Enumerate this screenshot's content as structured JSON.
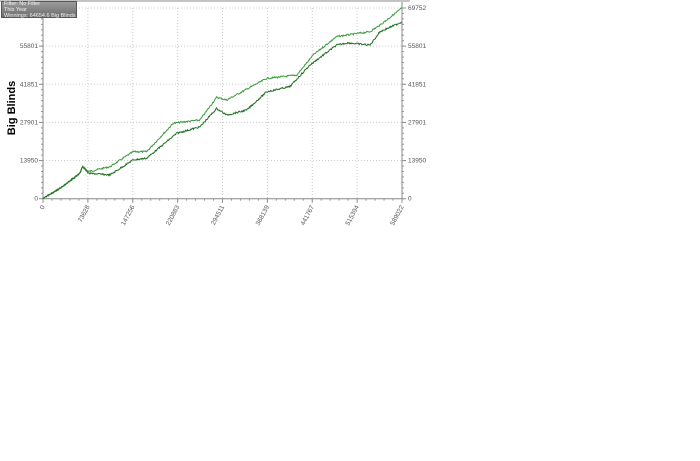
{
  "legend": {
    "filter": "Filter: No Filter",
    "period": "This Year",
    "winnings": "Winnings: 64654.6 Big Blinds"
  },
  "chart_data": {
    "type": "line",
    "title": "",
    "xlabel": "",
    "ylabel": "Big Blinds",
    "xlim": [
      0,
      589022
    ],
    "ylim": [
      0,
      69752
    ],
    "x_ticks": [
      "0",
      "73628",
      "147256",
      "220883",
      "294511",
      "368139",
      "441767",
      "515394",
      "589022"
    ],
    "y_ticks": [
      "0",
      "13950",
      "27901",
      "41851",
      "55801",
      "69752"
    ],
    "grid": true,
    "series": [
      {
        "color": "#3c9a3c",
        "points": [
          [
            0,
            0
          ],
          [
            27900,
            3800
          ],
          [
            60700,
            9300
          ],
          [
            65100,
            12000
          ],
          [
            74300,
            9900
          ],
          [
            110000,
            11700
          ],
          [
            148000,
            17200
          ],
          [
            170000,
            17200
          ],
          [
            213800,
            27600
          ],
          [
            257600,
            28800
          ],
          [
            285000,
            37100
          ],
          [
            301400,
            36100
          ],
          [
            367000,
            44000
          ],
          [
            416300,
            45200
          ],
          [
            443500,
            52600
          ],
          [
            481900,
            59300
          ],
          [
            536500,
            61100
          ],
          [
            553000,
            63500
          ],
          [
            589022,
            69752
          ]
        ]
      },
      {
        "color": "#1e6e1e",
        "points": [
          [
            0,
            0
          ],
          [
            27900,
            3800
          ],
          [
            60700,
            9300
          ],
          [
            65100,
            11800
          ],
          [
            74300,
            9300
          ],
          [
            110000,
            8700
          ],
          [
            148000,
            14200
          ],
          [
            170000,
            14800
          ],
          [
            219400,
            23900
          ],
          [
            257600,
            26300
          ],
          [
            285000,
            33000
          ],
          [
            301400,
            30600
          ],
          [
            334200,
            32400
          ],
          [
            367000,
            39100
          ],
          [
            405000,
            41000
          ],
          [
            438000,
            48900
          ],
          [
            481900,
            56200
          ],
          [
            500000,
            57000
          ],
          [
            536500,
            56200
          ],
          [
            553000,
            61100
          ],
          [
            589022,
            64654.6
          ]
        ]
      }
    ]
  }
}
